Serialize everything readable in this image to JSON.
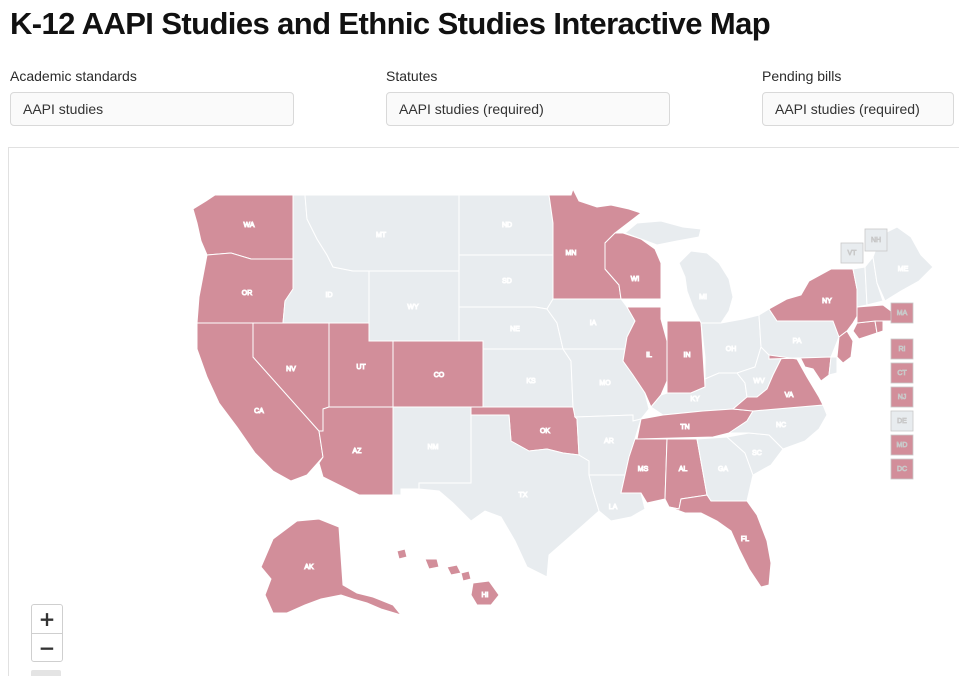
{
  "title": "K-12 AAPI Studies and Ethnic Studies Interactive Map",
  "filters": {
    "academic": {
      "label": "Academic standards",
      "value": "AAPI studies"
    },
    "statutes": {
      "label": "Statutes",
      "value": "AAPI studies (required)"
    },
    "pending": {
      "label": "Pending bills",
      "value": "AAPI studies (required)"
    }
  },
  "colors": {
    "highlight": "#d28e9a",
    "default": "#e8ecef",
    "border": "#ffffff"
  },
  "zoom": {
    "in": "+",
    "out": "−"
  },
  "highlighted_states": [
    "WA",
    "OR",
    "CA",
    "NV",
    "UT",
    "AZ",
    "CO",
    "OK",
    "MN",
    "WI",
    "IL",
    "IN",
    "TN",
    "MS",
    "AL",
    "FL",
    "VA",
    "NY",
    "MA",
    "RI",
    "CT",
    "NJ",
    "MD",
    "DC",
    "AK",
    "HI"
  ],
  "labels": {
    "WA": "WA",
    "OR": "OR",
    "CA": "CA",
    "NV": "NV",
    "ID": "ID",
    "MT": "MT",
    "WY": "WY",
    "UT": "UT",
    "AZ": "AZ",
    "CO": "CO",
    "NM": "NM",
    "ND": "ND",
    "SD": "SD",
    "NE": "NE",
    "KS": "KS",
    "OK": "OK",
    "TX": "TX",
    "MN": "MN",
    "IA": "IA",
    "MO": "MO",
    "AR": "AR",
    "LA": "LA",
    "WI": "WI",
    "IL": "IL",
    "MI": "MI",
    "IN": "IN",
    "OH": "OH",
    "KY": "KY",
    "TN": "TN",
    "MS": "MS",
    "AL": "AL",
    "GA": "GA",
    "FL": "FL",
    "SC": "SC",
    "NC": "NC",
    "VA": "VA",
    "WV": "WV",
    "PA": "PA",
    "NY": "NY",
    "VT": "VT",
    "NH": "NH",
    "ME": "ME",
    "MA": "MA",
    "RI": "RI",
    "CT": "CT",
    "NJ": "NJ",
    "DE": "DE",
    "MD": "MD",
    "DC": "DC",
    "AK": "AK",
    "HI": "HI"
  }
}
